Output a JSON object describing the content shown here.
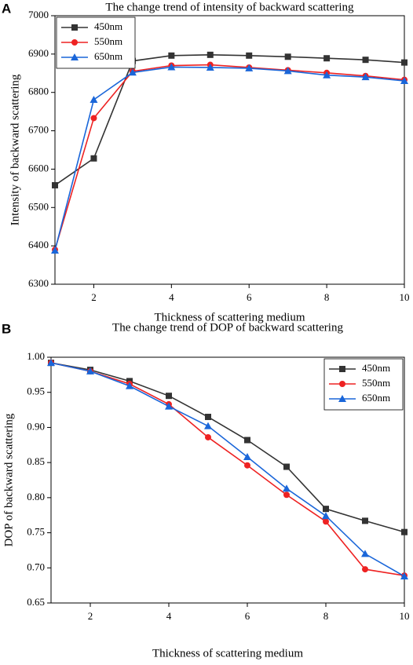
{
  "chart_data": [
    {
      "type": "line",
      "panel_label": "A",
      "title": "The change trend of intensity of backward scattering",
      "x_label": "Thickness of scattering medium",
      "y_label": "Intensity of backward scattering",
      "x": [
        1,
        2,
        3,
        4,
        5,
        6,
        7,
        8,
        9,
        10
      ],
      "xlim": [
        1,
        10
      ],
      "xticks": [
        2,
        4,
        6,
        8,
        10
      ],
      "ylim": [
        6300,
        7000
      ],
      "yticks": [
        6300,
        6400,
        6500,
        6600,
        6700,
        6800,
        6900,
        7000
      ],
      "grid": false,
      "legend": "upper-left",
      "series": [
        {
          "name": "450nm",
          "color": "#333333",
          "marker": "square",
          "values": [
            6558,
            6628,
            6882,
            6896,
            6898,
            6896,
            6893,
            6889,
            6885,
            6878
          ]
        },
        {
          "name": "550nm",
          "color": "#ee2222",
          "marker": "circle",
          "values": [
            6390,
            6733,
            6855,
            6870,
            6872,
            6865,
            6858,
            6851,
            6843,
            6833
          ]
        },
        {
          "name": "650nm",
          "color": "#1a66d9",
          "marker": "triangle",
          "values": [
            6388,
            6781,
            6852,
            6866,
            6865,
            6863,
            6856,
            6845,
            6840,
            6830
          ]
        }
      ]
    },
    {
      "type": "line",
      "panel_label": "B",
      "title": "The change trend of DOP of backward scattering",
      "x_label": "Thickness of scattering medium",
      "y_label": "DOP of backward scattering",
      "x": [
        1,
        2,
        3,
        4,
        5,
        6,
        7,
        8,
        9,
        10
      ],
      "xlim": [
        1,
        10
      ],
      "xticks": [
        2,
        4,
        6,
        8,
        10
      ],
      "ylim": [
        0.65,
        1.0
      ],
      "yticks": [
        0.65,
        {
          "value": 0.7,
          "label": "0.70"
        },
        0.75,
        {
          "value": 0.8,
          "label": "0.80"
        },
        0.85,
        {
          "value": 0.9,
          "label": "0.90"
        },
        0.95,
        {
          "value": 1.0,
          "label": "1.00"
        }
      ],
      "grid": false,
      "legend": "upper-right",
      "series": [
        {
          "name": "450nm",
          "color": "#333333",
          "marker": "square",
          "values": [
            0.992,
            0.982,
            0.966,
            0.945,
            0.915,
            0.882,
            0.844,
            0.784,
            0.767,
            0.751
          ]
        },
        {
          "name": "550nm",
          "color": "#ee2222",
          "marker": "circle",
          "values": [
            0.992,
            0.98,
            0.962,
            0.933,
            0.886,
            0.846,
            0.804,
            0.766,
            0.698,
            0.689
          ]
        },
        {
          "name": "650nm",
          "color": "#1a66d9",
          "marker": "triangle",
          "values": [
            0.992,
            0.98,
            0.959,
            0.93,
            0.902,
            0.858,
            0.813,
            0.774,
            0.72,
            0.688
          ]
        }
      ]
    }
  ]
}
